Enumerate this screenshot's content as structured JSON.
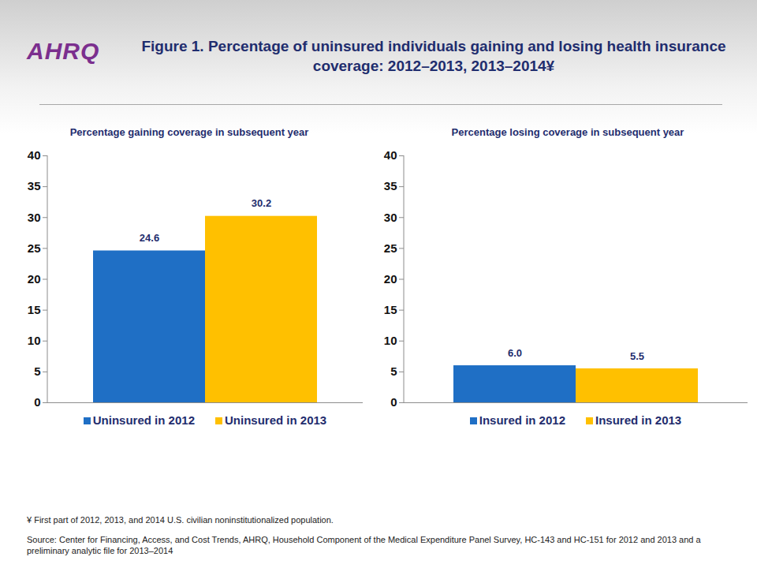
{
  "logo": "AHRQ",
  "title": "Figure 1. Percentage of uninsured individuals gaining and losing health insurance coverage: 2012–2013, 2013–2014¥",
  "notes": [
    "¥ First part of 2012, 2013, and 2014 U.S. civilian noninstitutionalized population.",
    "Source: Center for Financing, Access, and Cost Trends, AHRQ, Household Component of the Medical Expenditure Panel Survey, HC-143 and HC-151 for 2012 and 2013 and a preliminary analytic file for 2013–2014"
  ],
  "chart_data": [
    {
      "type": "bar",
      "title": "Percentage gaining coverage in subsequent year",
      "categories": [
        null
      ],
      "series": [
        {
          "name": "Uninsured in 2012",
          "color": "#1f6fc5",
          "values": [
            24.6
          ]
        },
        {
          "name": "Uninsured in 2013",
          "color": "#ffc000",
          "values": [
            30.2
          ]
        }
      ],
      "ylim": [
        0,
        40
      ],
      "yticks": [
        0,
        5,
        10,
        15,
        20,
        25,
        30,
        35,
        40
      ],
      "grid": false,
      "legend": "bottom",
      "data_labels": true,
      "tick_labels": "y"
    },
    {
      "type": "bar",
      "title": "Percentage losing coverage in subsequent year",
      "categories": [
        null
      ],
      "series": [
        {
          "name": "Insured in 2012",
          "color": "#1f6fc5",
          "values": [
            6.0
          ],
          "value_labels": [
            "6.0"
          ]
        },
        {
          "name": "Insured in 2013",
          "color": "#ffc000",
          "values": [
            5.5
          ]
        }
      ],
      "ylim": [
        0,
        40
      ],
      "yticks": [
        0,
        5,
        10,
        15,
        20,
        25,
        30,
        35,
        40
      ],
      "grid": false,
      "legend": "bottom",
      "data_labels": true,
      "tick_labels": "y"
    }
  ]
}
